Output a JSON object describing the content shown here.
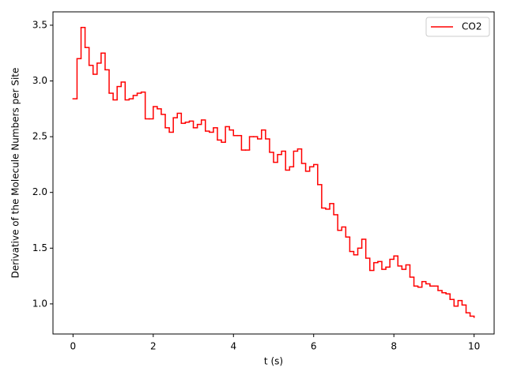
{
  "chart_data": {
    "type": "line",
    "drawstyle": "steps-post",
    "xlabel": "t (s)",
    "ylabel": "Derivative of the Molecule Numbers per Site",
    "x": [
      0,
      0.1,
      0.2,
      0.3,
      0.4,
      0.5,
      0.6,
      0.7,
      0.8,
      0.9,
      1,
      1.1,
      1.2,
      1.3,
      1.4,
      1.5,
      1.6,
      1.7,
      1.8,
      1.9,
      2,
      2.1,
      2.2,
      2.3,
      2.4,
      2.5,
      2.6,
      2.7,
      2.8,
      2.9,
      3,
      3.1,
      3.2,
      3.3,
      3.4,
      3.5,
      3.6,
      3.7,
      3.8,
      3.9,
      4,
      4.1,
      4.2,
      4.3,
      4.4,
      4.5,
      4.6,
      4.7,
      4.8,
      4.9,
      5,
      5.1,
      5.2,
      5.3,
      5.4,
      5.5,
      5.6,
      5.7,
      5.8,
      5.9,
      6,
      6.1,
      6.2,
      6.3,
      6.4,
      6.5,
      6.6,
      6.7,
      6.8,
      6.9,
      7,
      7.1,
      7.2,
      7.3,
      7.4,
      7.5,
      7.6,
      7.7,
      7.8,
      7.9,
      8,
      8.1,
      8.2,
      8.3,
      8.4,
      8.5,
      8.6,
      8.7,
      8.8,
      8.9,
      9,
      9.1,
      9.2,
      9.3,
      9.4,
      9.5,
      9.6,
      9.7,
      9.8,
      9.9,
      10
    ],
    "series": [
      {
        "name": "CO2",
        "color": "#ff0000",
        "values": [
          2.84,
          3.2,
          3.48,
          3.3,
          3.14,
          3.06,
          3.16,
          3.25,
          3.1,
          2.89,
          2.83,
          2.95,
          2.99,
          2.83,
          2.84,
          2.87,
          2.89,
          2.9,
          2.66,
          2.66,
          2.77,
          2.75,
          2.7,
          2.58,
          2.54,
          2.67,
          2.71,
          2.62,
          2.63,
          2.64,
          2.58,
          2.61,
          2.65,
          2.55,
          2.54,
          2.58,
          2.47,
          2.45,
          2.59,
          2.56,
          2.51,
          2.51,
          2.38,
          2.38,
          2.5,
          2.5,
          2.48,
          2.56,
          2.48,
          2.36,
          2.27,
          2.34,
          2.37,
          2.2,
          2.23,
          2.37,
          2.39,
          2.26,
          2.19,
          2.23,
          2.25,
          2.07,
          1.86,
          1.85,
          1.9,
          1.8,
          1.66,
          1.69,
          1.6,
          1.47,
          1.44,
          1.5,
          1.58,
          1.41,
          1.3,
          1.37,
          1.38,
          1.31,
          1.33,
          1.4,
          1.43,
          1.34,
          1.31,
          1.35,
          1.24,
          1.16,
          1.15,
          1.2,
          1.18,
          1.16,
          1.16,
          1.12,
          1.1,
          1.09,
          1.04,
          0.98,
          1.03,
          0.99,
          0.92,
          0.89,
          0.88
        ]
      }
    ],
    "xlim": [
      -0.5,
      10.5
    ],
    "ylim": [
      0.73,
      3.62
    ],
    "xticks": [
      0,
      2,
      4,
      6,
      8,
      10
    ],
    "yticks": [
      {
        "value": 1,
        "label": "1.0"
      },
      1.5,
      {
        "value": 2,
        "label": "2.0"
      },
      2.5,
      {
        "value": 3,
        "label": "3.0"
      },
      3.5
    ],
    "legend": "upper right"
  }
}
